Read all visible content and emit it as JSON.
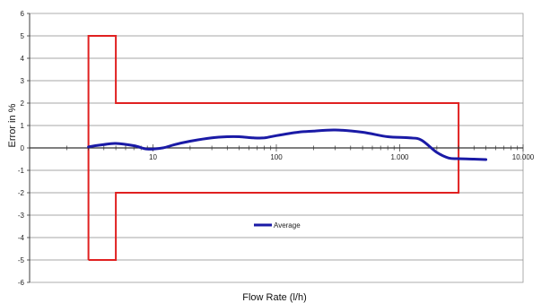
{
  "chart_data": {
    "type": "line",
    "xlabel": "Flow Rate (l/h)",
    "ylabel": "Error in %",
    "xscale": "log",
    "xlim": [
      1,
      10000
    ],
    "ylim": [
      -6,
      6
    ],
    "x_ticks": [
      {
        "value": 10,
        "label": "10"
      },
      {
        "value": 100,
        "label": "100"
      },
      {
        "value": 1000,
        "label": "1.000"
      },
      {
        "value": 10000,
        "label": "10.000"
      }
    ],
    "y_ticks": [
      6,
      5,
      4,
      3,
      2,
      1,
      0,
      -1,
      -2,
      -3,
      -4,
      -5,
      -6
    ],
    "grid": "horizontal",
    "legend": {
      "position": "bottom-center"
    },
    "series": [
      {
        "name": "Average",
        "color": "#1a1aa6",
        "x": [
          3,
          4,
          5,
          7,
          9,
          12,
          15,
          20,
          30,
          40,
          50,
          65,
          80,
          100,
          150,
          200,
          300,
          500,
          800,
          1200,
          1500,
          2000,
          2500,
          3000,
          4000,
          5000
        ],
        "y": [
          0.05,
          0.15,
          0.2,
          0.1,
          -0.05,
          0.0,
          0.15,
          0.3,
          0.45,
          0.5,
          0.5,
          0.45,
          0.45,
          0.55,
          0.7,
          0.75,
          0.8,
          0.7,
          0.5,
          0.45,
          0.35,
          -0.2,
          -0.45,
          -0.48,
          -0.5,
          -0.52
        ]
      }
    ],
    "limit_envelope": {
      "color": "#e02020",
      "points": [
        [
          3,
          -5
        ],
        [
          3,
          5
        ],
        [
          5,
          5
        ],
        [
          5,
          2
        ],
        [
          3000,
          2
        ],
        [
          3000,
          -2
        ],
        [
          5,
          -2
        ],
        [
          5,
          -5
        ],
        [
          3,
          -5
        ]
      ]
    }
  }
}
